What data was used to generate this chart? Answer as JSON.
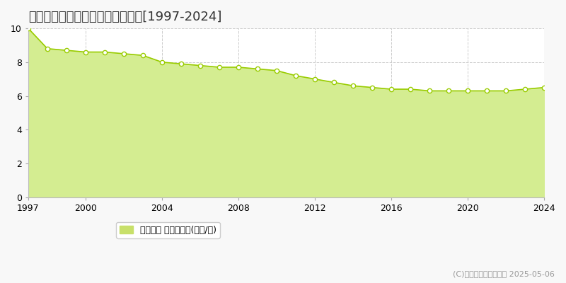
{
  "title": "鞍手郡鞍手町中山　基準地価推移[1997-2024]",
  "years": [
    1997,
    1998,
    1999,
    2000,
    2001,
    2002,
    2003,
    2004,
    2005,
    2006,
    2007,
    2008,
    2009,
    2010,
    2011,
    2012,
    2013,
    2014,
    2015,
    2016,
    2017,
    2018,
    2019,
    2020,
    2021,
    2022,
    2023,
    2024
  ],
  "values": [
    10.0,
    8.8,
    8.7,
    8.6,
    8.6,
    8.5,
    8.4,
    8.0,
    7.9,
    7.8,
    7.7,
    7.7,
    7.6,
    7.5,
    7.2,
    7.0,
    6.8,
    6.6,
    6.5,
    6.4,
    6.4,
    6.3,
    6.3,
    6.3,
    6.3,
    6.3,
    6.4,
    6.5
  ],
  "line_color": "#99cc00",
  "fill_color": "#d4ed91",
  "marker_face_color": "#ffffff",
  "marker_edge_color": "#99cc00",
  "background_color": "#f8f8f8",
  "plot_bg_color": "#ffffff",
  "grid_color": "#cccccc",
  "ylim": [
    0,
    10
  ],
  "yticks": [
    0,
    2,
    4,
    6,
    8,
    10
  ],
  "xticks": [
    1997,
    2000,
    2004,
    2008,
    2012,
    2016,
    2020,
    2024
  ],
  "legend_label": "基準地価 平均坪単価(万円/坪)",
  "legend_color": "#c8e06a",
  "copyright_text": "(C)土地価格ドットコム 2025-05-06",
  "title_fontsize": 13,
  "tick_fontsize": 9,
  "legend_fontsize": 9
}
